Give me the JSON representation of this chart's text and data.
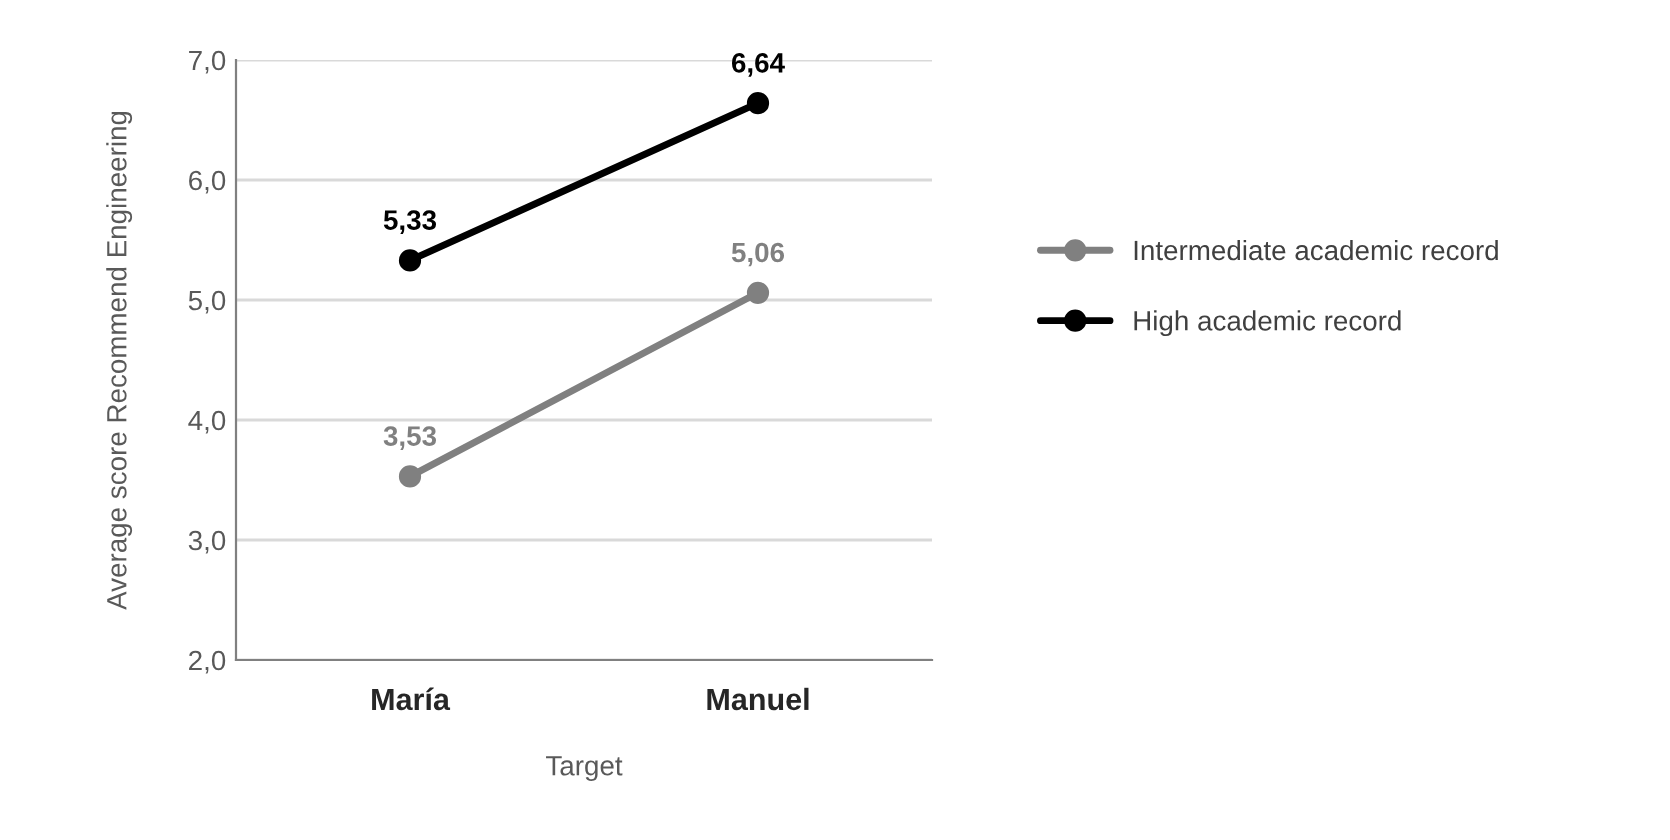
{
  "chart_data": {
    "type": "line",
    "xlabel": "Target",
    "ylabel": "Average score Recommend Engineering",
    "categories": [
      "María",
      "Manuel"
    ],
    "series": [
      {
        "name": "Intermediate academic record",
        "color": "#808080",
        "values": [
          3.53,
          5.06
        ],
        "value_labels": [
          "3,53",
          "5,06"
        ]
      },
      {
        "name": "High academic record",
        "color": "#000000",
        "values": [
          5.33,
          6.64
        ],
        "value_labels": [
          "5,33",
          "6,64"
        ]
      }
    ],
    "ylim": [
      2,
      7
    ],
    "yticks": [
      {
        "value": 2,
        "label": "2,0"
      },
      {
        "value": 3,
        "label": "3,0"
      },
      {
        "value": 4,
        "label": "4,0"
      },
      {
        "value": 5,
        "label": "5,0"
      },
      {
        "value": 6,
        "label": "6,0"
      },
      {
        "value": 7,
        "label": "7,0"
      }
    ],
    "grid": "y",
    "legend": "right",
    "marker": "circle",
    "line_style": "solid"
  }
}
